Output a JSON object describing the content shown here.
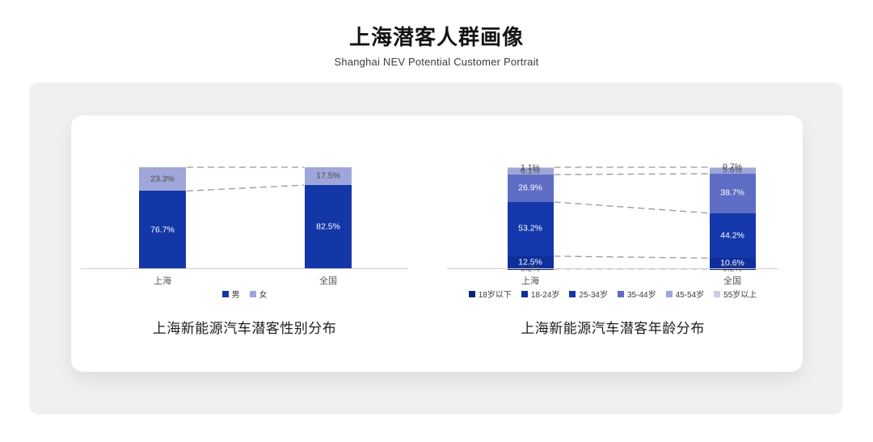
{
  "page": {
    "title": "上海潜客人群画像",
    "subtitle": "Shanghai NEV Potential Customer Portrait"
  },
  "chart_data": [
    {
      "type": "bar",
      "stacked": true,
      "title": "上海新能源汽车潜客性别分布",
      "categories": [
        "上海",
        "全国"
      ],
      "series": [
        {
          "name": "男",
          "values": [
            76.7,
            82.5
          ],
          "color": "#1337A6",
          "label_color": "#ffffff"
        },
        {
          "name": "女",
          "values": [
            23.3,
            17.5
          ],
          "color": "#9FA6D9",
          "label_color": "#4a4a4a"
        }
      ],
      "unit": "%",
      "ylim": [
        0,
        100
      ],
      "grid": false,
      "legend_position": "bottom",
      "connectors": [
        [
          100,
          100
        ],
        [
          76.7,
          82.5
        ]
      ]
    },
    {
      "type": "bar",
      "stacked": true,
      "title": "上海新能源汽车潜客年龄分布",
      "categories": [
        "上海",
        "全国"
      ],
      "series": [
        {
          "name": "18岁以下",
          "values": [
            0.2,
            0.2
          ],
          "color": "#0B2477",
          "label_color": "#4a4a4a"
        },
        {
          "name": "18-24岁",
          "values": [
            12.5,
            10.6
          ],
          "color": "#0E2F9B",
          "label_color": "#ffffff"
        },
        {
          "name": "25-34岁",
          "values": [
            53.2,
            44.2
          ],
          "color": "#1539AC",
          "label_color": "#ffffff"
        },
        {
          "name": "35-44岁",
          "values": [
            26.9,
            38.7
          ],
          "color": "#5F6DC4",
          "label_color": "#ffffff"
        },
        {
          "name": "45-54岁",
          "values": [
            6.1,
            5.6
          ],
          "color": "#9FA6D9",
          "label_color": "#4a4a4a"
        },
        {
          "name": "55岁以上",
          "values": [
            1.1,
            0.7
          ],
          "color": "#C8CDE9",
          "label_color": "#4a4a4a"
        }
      ],
      "unit": "%",
      "ylim": [
        0,
        100
      ],
      "grid": false,
      "legend_position": "bottom",
      "connectors": [
        [
          100,
          100
        ],
        [
          92.8,
          93.7
        ],
        [
          65.9,
          55.0
        ],
        [
          12.7,
          10.8
        ],
        [
          0.2,
          0.2
        ]
      ]
    }
  ]
}
